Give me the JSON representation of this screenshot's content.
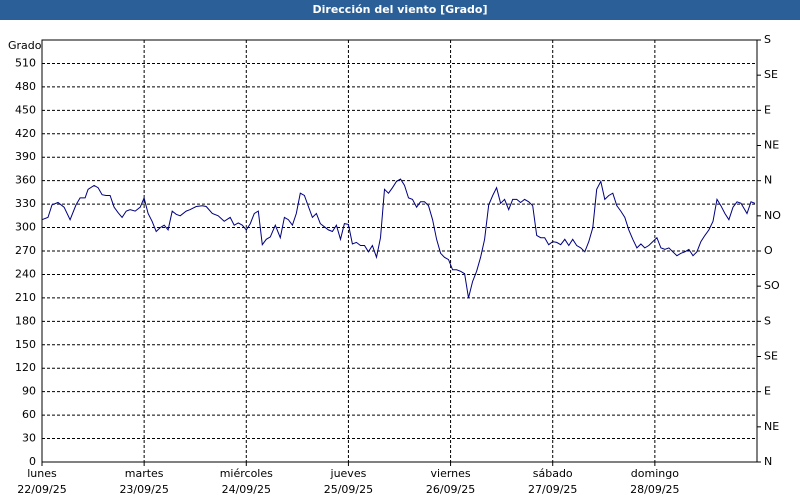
{
  "chart_data": {
    "type": "line",
    "title": "Dirección del viento [Grado]",
    "ylabel": "Grado",
    "x": [
      0,
      0.059,
      0.098,
      0.157,
      0.216,
      0.275,
      0.333,
      0.373,
      0.422,
      0.451,
      0.51,
      0.549,
      0.588,
      0.627,
      0.667,
      0.706,
      0.745,
      0.784,
      0.824,
      0.863,
      0.912,
      0.961,
      1.0,
      1.039,
      1.078,
      1.118,
      1.157,
      1.196,
      1.235,
      1.275,
      1.314,
      1.353,
      1.412,
      1.451,
      1.51,
      1.569,
      1.608,
      1.667,
      1.725,
      1.784,
      1.843,
      1.882,
      1.922,
      1.961,
      2.0,
      2.039,
      2.078,
      2.118,
      2.157,
      2.196,
      2.235,
      2.284,
      2.333,
      2.373,
      2.412,
      2.451,
      2.49,
      2.529,
      2.569,
      2.608,
      2.647,
      2.686,
      2.725,
      2.765,
      2.804,
      2.843,
      2.882,
      2.922,
      2.961,
      3.0,
      3.039,
      3.078,
      3.118,
      3.157,
      3.196,
      3.235,
      3.275,
      3.314,
      3.353,
      3.392,
      3.431,
      3.471,
      3.51,
      3.549,
      3.588,
      3.627,
      3.667,
      3.706,
      3.745,
      3.784,
      3.824,
      3.863,
      3.902,
      3.941,
      3.98,
      4.02,
      4.059,
      4.098,
      4.137,
      4.176,
      4.216,
      4.255,
      4.294,
      4.333,
      4.373,
      4.412,
      4.451,
      4.49,
      4.529,
      4.569,
      4.608,
      4.647,
      4.686,
      4.725,
      4.765,
      4.804,
      4.843,
      4.882,
      4.922,
      4.961,
      5.0,
      5.039,
      5.078,
      5.118,
      5.157,
      5.196,
      5.235,
      5.275,
      5.314,
      5.353,
      5.392,
      5.431,
      5.471,
      5.51,
      5.549,
      5.588,
      5.627,
      5.667,
      5.706,
      5.745,
      5.784,
      5.824,
      5.863,
      5.902,
      5.941,
      5.98,
      6.02,
      6.059,
      6.098,
      6.137,
      6.176,
      6.216,
      6.255,
      6.294,
      6.333,
      6.373,
      6.412,
      6.451,
      6.49,
      6.529,
      6.569,
      6.608,
      6.647,
      6.686,
      6.725,
      6.765,
      6.804,
      6.843,
      6.902,
      6.941,
      6.98
    ],
    "series": [
      {
        "color": "#000080",
        "values": [
          310,
          313,
          329,
          332,
          326,
          310,
          329,
          338,
          338,
          349,
          354,
          351,
          342,
          341,
          341,
          326,
          319,
          313,
          321,
          323,
          321,
          326,
          338,
          318,
          308,
          295,
          300,
          303,
          297,
          321,
          317,
          315,
          321,
          323,
          327,
          328,
          327,
          318,
          315,
          308,
          313,
          303,
          306,
          303,
          297,
          305,
          318,
          321,
          278,
          285,
          288,
          303,
          287,
          313,
          310,
          303,
          318,
          344,
          341,
          327,
          313,
          318,
          305,
          301,
          297,
          295,
          303,
          285,
          305,
          304,
          279,
          281,
          277,
          277,
          269,
          277,
          262,
          287,
          349,
          344,
          351,
          359,
          362,
          354,
          338,
          336,
          326,
          333,
          333,
          328,
          310,
          285,
          267,
          262,
          259,
          246,
          246,
          244,
          241,
          210,
          231,
          244,
          262,
          285,
          329,
          341,
          351,
          331,
          336,
          323,
          336,
          336,
          332,
          336,
          333,
          328,
          290,
          287,
          287,
          278,
          282,
          281,
          278,
          285,
          277,
          285,
          277,
          274,
          269,
          282,
          300,
          349,
          359,
          336,
          341,
          344,
          328,
          321,
          313,
          297,
          285,
          274,
          279,
          274,
          277,
          282,
          287,
          274,
          272,
          274,
          269,
          264,
          267,
          269,
          272,
          264,
          269,
          282,
          290,
          297,
          308,
          336,
          328,
          318,
          310,
          326,
          333,
          331,
          318,
          333,
          331
        ]
      }
    ],
    "xlim": [
      0,
      7
    ],
    "xticks": [
      {
        "value": 0,
        "label": "lunes"
      },
      {
        "value": 1,
        "label": "martes"
      },
      {
        "value": 2,
        "label": "miércoles"
      },
      {
        "value": 3,
        "label": "jueves"
      },
      {
        "value": 4,
        "label": "viernes"
      },
      {
        "value": 5,
        "label": "sábado"
      },
      {
        "value": 6,
        "label": "domingo"
      }
    ],
    "xtick_dates": [
      "22/09/25",
      "23/09/25",
      "24/09/25",
      "25/09/25",
      "26/09/25",
      "27/09/25",
      "28/09/25"
    ],
    "ylim": [
      0,
      540
    ],
    "yticks": [
      0,
      30,
      60,
      90,
      120,
      150,
      180,
      210,
      240,
      270,
      300,
      330,
      360,
      390,
      420,
      450,
      480,
      510
    ],
    "y2lim": [
      0,
      540
    ],
    "y2ticks": [
      {
        "value": 0,
        "label": "N"
      },
      {
        "value": 45,
        "label": "NE"
      },
      {
        "value": 90,
        "label": "E"
      },
      {
        "value": 135,
        "label": "SE"
      },
      {
        "value": 180,
        "label": "S"
      },
      {
        "value": 225,
        "label": "SO"
      },
      {
        "value": 270,
        "label": "O"
      },
      {
        "value": 315,
        "label": "NO"
      },
      {
        "value": 360,
        "label": "N"
      },
      {
        "value": 405,
        "label": "NE"
      },
      {
        "value": 450,
        "label": "E"
      },
      {
        "value": 495,
        "label": "SE"
      },
      {
        "value": 540,
        "label": "S"
      }
    ],
    "grid": true
  }
}
